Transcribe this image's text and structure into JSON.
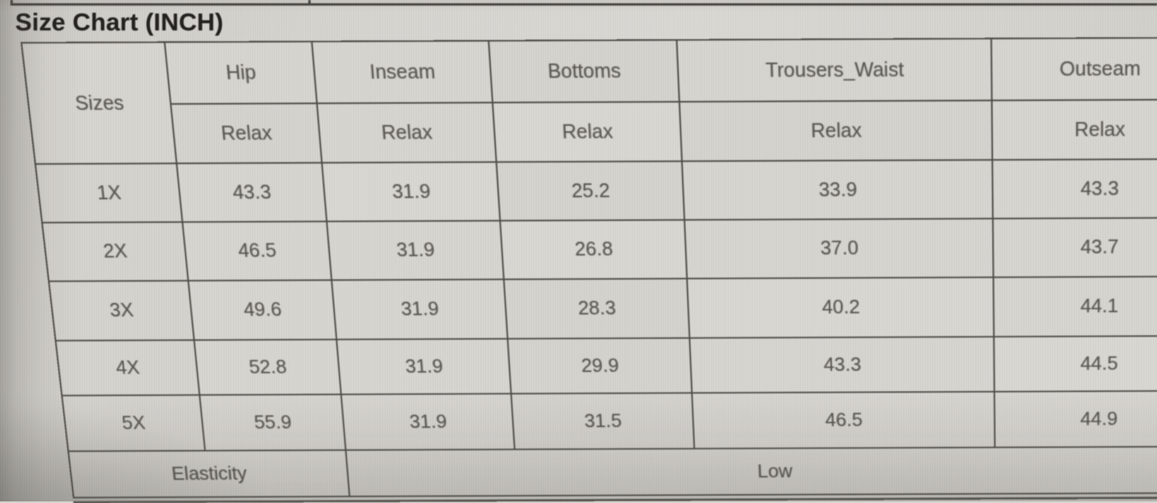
{
  "page": {
    "title": "Size Chart (INCH)"
  },
  "chart_data": {
    "type": "table",
    "title": "Size Chart (INCH)",
    "corner_label": "Sizes",
    "column_groups": [
      {
        "label": "Hip",
        "sub_label": "Relax"
      },
      {
        "label": "Inseam",
        "sub_label": "Relax"
      },
      {
        "label": "Bottoms",
        "sub_label": "Relax"
      },
      {
        "label": "Trousers_Waist",
        "sub_label": "Relax"
      },
      {
        "label": "Outseam",
        "sub_label": "Relax"
      }
    ],
    "rows": [
      {
        "size": "1X",
        "values": [
          "43.3",
          "31.9",
          "25.2",
          "33.9",
          "43.3"
        ]
      },
      {
        "size": "2X",
        "values": [
          "46.5",
          "31.9",
          "26.8",
          "37.0",
          "43.7"
        ]
      },
      {
        "size": "3X",
        "values": [
          "49.6",
          "31.9",
          "28.3",
          "40.2",
          "44.1"
        ]
      },
      {
        "size": "4X",
        "values": [
          "52.8",
          "31.9",
          "29.9",
          "43.3",
          "44.5"
        ]
      },
      {
        "size": "5X",
        "values": [
          "55.9",
          "31.9",
          "31.5",
          "46.5",
          "44.9"
        ]
      }
    ],
    "footer_row": {
      "label": "Elasticity",
      "value": "Low"
    }
  },
  "colors": {
    "table_fill": "#d8d6d1",
    "table_border": "#4c4a45",
    "cell_text": "#585650",
    "title_text": "#22201d",
    "photo_edge_shadow": "#a19f9a"
  }
}
